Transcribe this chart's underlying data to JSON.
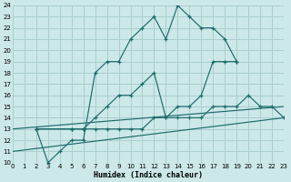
{
  "xlabel": "Humidex (Indice chaleur)",
  "bg_color": "#cce8e8",
  "grid_color": "#aacece",
  "line_color": "#1e6b6b",
  "xlim": [
    0,
    23
  ],
  "ylim": [
    10,
    24
  ],
  "xticks": [
    0,
    1,
    2,
    3,
    4,
    5,
    6,
    7,
    8,
    9,
    10,
    11,
    12,
    13,
    14,
    15,
    16,
    17,
    18,
    19,
    20,
    21,
    22,
    23
  ],
  "yticks": [
    10,
    11,
    12,
    13,
    14,
    15,
    16,
    17,
    18,
    19,
    20,
    21,
    22,
    23,
    24
  ],
  "line1_x": [
    2,
    3,
    4,
    5,
    6,
    7,
    8,
    9,
    10,
    11,
    12,
    13,
    14,
    15,
    16,
    17,
    18,
    19
  ],
  "line1_y": [
    13,
    10,
    11,
    12,
    12,
    18,
    19,
    19,
    21,
    22,
    23,
    21,
    24,
    23,
    22,
    22,
    21,
    19
  ],
  "line2_x": [
    2,
    5,
    6,
    7,
    8,
    9,
    10,
    11,
    12,
    13,
    14,
    15,
    16,
    17,
    18,
    19
  ],
  "line2_y": [
    13,
    13,
    13,
    14,
    15,
    16,
    16,
    17,
    18,
    14,
    15,
    15,
    16,
    19,
    19,
    19
  ],
  "line3_x": [
    2,
    5,
    6,
    7,
    8,
    9,
    10,
    11,
    12,
    13,
    14,
    15,
    16,
    17,
    18,
    19,
    20,
    21,
    22,
    23
  ],
  "line3_y": [
    13,
    13,
    13,
    13,
    13,
    13,
    13,
    13,
    14,
    14,
    14,
    14,
    14,
    15,
    15,
    15,
    16,
    15,
    15,
    14
  ],
  "line4_x": [
    0,
    23
  ],
  "line4_y": [
    11,
    14
  ],
  "line5_x": [
    0,
    23
  ],
  "line5_y": [
    13,
    15
  ]
}
